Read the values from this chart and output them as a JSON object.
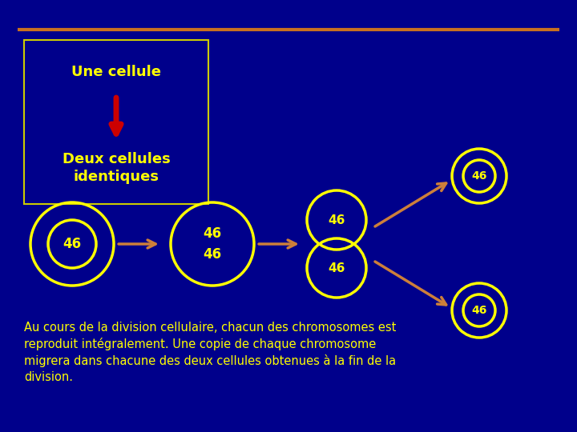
{
  "bg_color": "#00008B",
  "top_line_color": "#C87020",
  "text_color": "#FFFF00",
  "box_border_color": "#CCCC00",
  "arrow_color": "#CD7F3A",
  "red_arrow_color": "#CC0000",
  "circle_color": "#FFFF00",
  "label_text": "46",
  "title1": "Une cellule",
  "title2": "Deux cellules\nidentiques",
  "bottom_text": "Au cours de la division cellulaire, chacun des chromosomes est\nreproduit intégralement. Une copie de chaque chromosome\nmigrera dans chacune des deux cellules obtenues à la fin de la\ndivision."
}
